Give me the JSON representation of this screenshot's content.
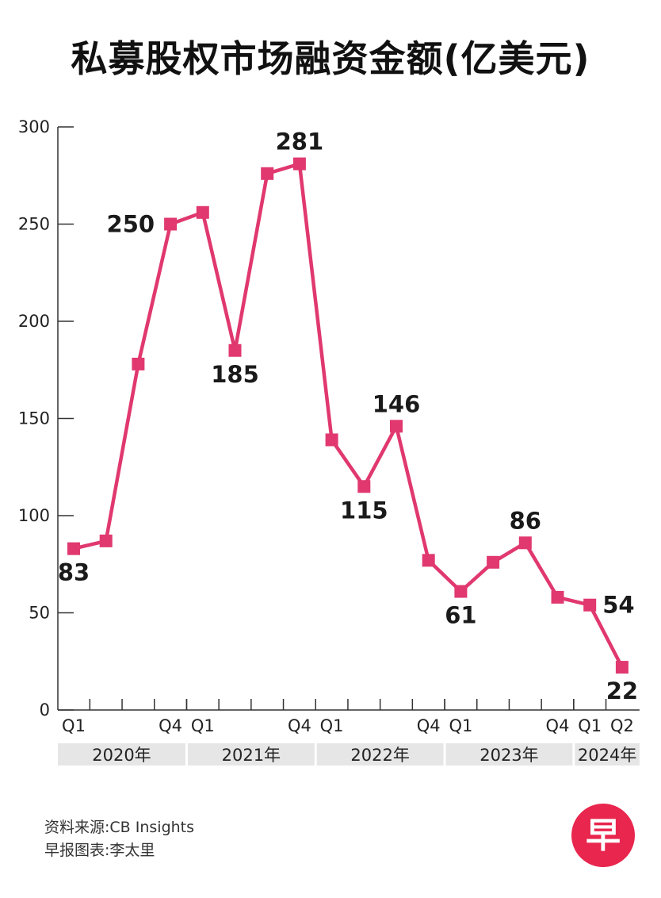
{
  "title": "私募股权市场融资金额(亿美元)",
  "colors": {
    "line": "#e0386f",
    "year_band": "#e6e6e6",
    "logo": "#e8264e"
  },
  "chart_data": {
    "type": "line",
    "title": "私募股权市场融资金额(亿美元)",
    "ylim": [
      0,
      300
    ],
    "yticks": [
      0,
      50,
      100,
      150,
      200,
      250,
      300
    ],
    "grid": false,
    "x": [
      "2020 Q1",
      "2020 Q2",
      "2020 Q3",
      "2020 Q4",
      "2021 Q1",
      "2021 Q2",
      "2021 Q3",
      "2021 Q4",
      "2022 Q1",
      "2022 Q2",
      "2022 Q3",
      "2022 Q4",
      "2023 Q1",
      "2023 Q2",
      "2023 Q3",
      "2023 Q4",
      "2024 Q1",
      "2024 Q2"
    ],
    "values": [
      83,
      87,
      178,
      250,
      256,
      185,
      276,
      281,
      139,
      115,
      146,
      77,
      61,
      76,
      86,
      58,
      54,
      22
    ],
    "x_tick_labels": [
      {
        "index": 0,
        "text": "Q1"
      },
      {
        "index": 3,
        "text": "Q4"
      },
      {
        "index": 4,
        "text": "Q1"
      },
      {
        "index": 7,
        "text": "Q4"
      },
      {
        "index": 8,
        "text": "Q1"
      },
      {
        "index": 11,
        "text": "Q4"
      },
      {
        "index": 12,
        "text": "Q1"
      },
      {
        "index": 15,
        "text": "Q4"
      },
      {
        "index": 16,
        "text": "Q1"
      },
      {
        "index": 17,
        "text": "Q2"
      }
    ],
    "years": [
      {
        "label": "2020年",
        "start": 0,
        "end": 3
      },
      {
        "label": "2021年",
        "start": 4,
        "end": 7
      },
      {
        "label": "2022年",
        "start": 8,
        "end": 11
      },
      {
        "label": "2023年",
        "start": 12,
        "end": 15
      },
      {
        "label": "2024年",
        "start": 16,
        "end": 17
      }
    ],
    "data_labels": [
      {
        "index": 0,
        "text": "83",
        "pos": "below"
      },
      {
        "index": 3,
        "text": "250",
        "pos": "left"
      },
      {
        "index": 5,
        "text": "185",
        "pos": "below"
      },
      {
        "index": 7,
        "text": "281",
        "pos": "above"
      },
      {
        "index": 9,
        "text": "115",
        "pos": "below"
      },
      {
        "index": 10,
        "text": "146",
        "pos": "above"
      },
      {
        "index": 12,
        "text": "61",
        "pos": "below"
      },
      {
        "index": 14,
        "text": "86",
        "pos": "above"
      },
      {
        "index": 16,
        "text": "54",
        "pos": "right"
      },
      {
        "index": 17,
        "text": "22",
        "pos": "below"
      }
    ]
  },
  "footer": {
    "source": "资料来源:CB Insights",
    "credit": "早报图表:李太里"
  },
  "logo": {
    "text": "早"
  }
}
